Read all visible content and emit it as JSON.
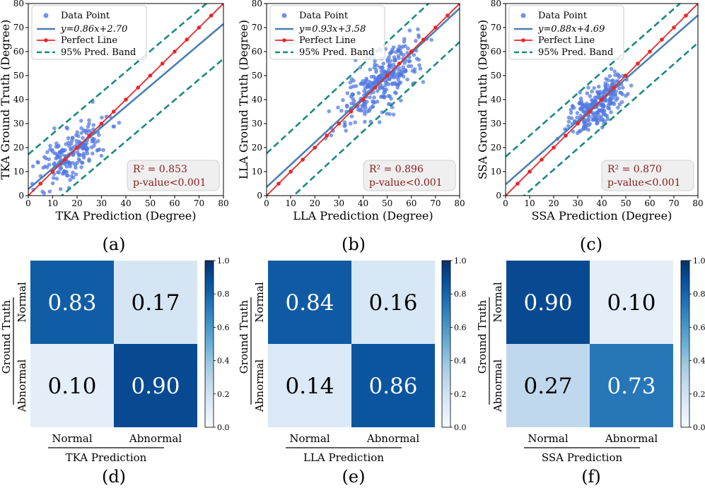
{
  "figure": {
    "panel_captions": [
      "(a)",
      "(b)",
      "(c)",
      "(d)",
      "(e)",
      "(f)"
    ]
  },
  "chart_data": [
    {
      "type": "scatter",
      "id": "a",
      "caption": "(a)",
      "xlabel": "TKA Prediction (Degree)",
      "ylabel": "TKA Ground Truth (Degree)",
      "xlim": [
        0,
        80
      ],
      "ylim": [
        0,
        80
      ],
      "xticks": [
        0,
        10,
        20,
        30,
        40,
        50,
        60,
        70,
        80
      ],
      "yticks": [
        0,
        10,
        20,
        30,
        40,
        50,
        60,
        70,
        80
      ],
      "fit": {
        "slope": 0.86,
        "intercept": 2.7,
        "label": "y=0.86x+2.70"
      },
      "band_offset": 14.5,
      "perfect_line_points": [
        0,
        5,
        10,
        15,
        20,
        25,
        30,
        35,
        40,
        45,
        50,
        55,
        60,
        65,
        70,
        75,
        80
      ],
      "scatter_cluster": {
        "center": [
          18,
          18
        ],
        "spread_along": 9,
        "spread_across": 4.5,
        "count": 200,
        "seed": 11
      },
      "legend": [
        "Data Point",
        "Perfect Line",
        "95% Pred. Band"
      ],
      "stats": {
        "r2_label": "R² = 0.853",
        "p_label": "p-value<0.001"
      }
    },
    {
      "type": "scatter",
      "id": "b",
      "caption": "(b)",
      "xlabel": "LLA Prediction (Degree)",
      "ylabel": "LLA Ground Truth (Degree)",
      "xlim": [
        0,
        80
      ],
      "ylim": [
        0,
        80
      ],
      "xticks": [
        0,
        10,
        20,
        30,
        40,
        50,
        60,
        70,
        80
      ],
      "yticks": [
        0,
        10,
        20,
        30,
        40,
        50,
        60,
        70,
        80
      ],
      "fit": {
        "slope": 0.93,
        "intercept": 3.58,
        "label": "y=0.93x+3.58"
      },
      "band_offset": 14,
      "perfect_line_points": [
        0,
        5,
        10,
        15,
        20,
        25,
        30,
        35,
        40,
        45,
        50,
        55,
        60,
        65,
        70,
        75,
        80
      ],
      "scatter_cluster": {
        "center": [
          47,
          47
        ],
        "spread_along": 11,
        "spread_across": 4.5,
        "count": 300,
        "seed": 23
      },
      "legend": [
        "Data Point",
        "Perfect Line",
        "95% Pred. Band"
      ],
      "stats": {
        "r2_label": "R² = 0.896",
        "p_label": "p-value<0.001"
      }
    },
    {
      "type": "scatter",
      "id": "c",
      "caption": "(c)",
      "xlabel": "SSA Prediction (Degree)",
      "ylabel": "SSA Ground Truth (Degree)",
      "xlim": [
        0,
        80
      ],
      "ylim": [
        0,
        80
      ],
      "xticks": [
        0,
        10,
        20,
        30,
        40,
        50,
        60,
        70,
        80
      ],
      "yticks": [
        0,
        10,
        20,
        30,
        40,
        50,
        60,
        70,
        80
      ],
      "fit": {
        "slope": 0.88,
        "intercept": 4.69,
        "label": "y=0.88x+4.69"
      },
      "band_offset": 11.5,
      "perfect_line_points": [
        0,
        5,
        10,
        15,
        20,
        25,
        30,
        35,
        40,
        45,
        50,
        55,
        60,
        65,
        70,
        75,
        80
      ],
      "scatter_cluster": {
        "center": [
          38,
          38
        ],
        "spread_along": 7,
        "spread_across": 3.5,
        "count": 250,
        "seed": 37
      },
      "legend": [
        "Data Point",
        "Perfect Line",
        "95% Pred. Band"
      ],
      "stats": {
        "r2_label": "R² = 0.870",
        "p_label": "p-value<0.001"
      }
    },
    {
      "type": "heatmap",
      "id": "d",
      "caption": "(d)",
      "row_labels": [
        "Normal",
        "Abnormal"
      ],
      "col_labels": [
        "Normal",
        "Abnormal"
      ],
      "values": [
        [
          0.83,
          0.17
        ],
        [
          0.1,
          0.9
        ]
      ],
      "cell_labels": [
        [
          "0.83",
          "0.17"
        ],
        [
          "0.10",
          "0.90"
        ]
      ],
      "ylabel": "Ground Truth",
      "xlabel": "TKA Prediction",
      "colorbar_ticks": [
        "0.0",
        "0.2",
        "0.4",
        "0.6",
        "0.8",
        "1.0"
      ],
      "vmin": 0,
      "vmax": 1
    },
    {
      "type": "heatmap",
      "id": "e",
      "caption": "(e)",
      "row_labels": [
        "Normal",
        "Abnormal"
      ],
      "col_labels": [
        "Normal",
        "Abnormal"
      ],
      "values": [
        [
          0.84,
          0.16
        ],
        [
          0.14,
          0.86
        ]
      ],
      "cell_labels": [
        [
          "0.84",
          "0.16"
        ],
        [
          "0.14",
          "0.86"
        ]
      ],
      "ylabel": "Ground Truth",
      "xlabel": "LLA Prediction",
      "colorbar_ticks": [
        "0.0",
        "0.2",
        "0.4",
        "0.6",
        "0.8",
        "1.0"
      ],
      "vmin": 0,
      "vmax": 1
    },
    {
      "type": "heatmap",
      "id": "f",
      "caption": "(f)",
      "row_labels": [
        "Normal",
        "Abnormal"
      ],
      "col_labels": [
        "Normal",
        "Abnormal"
      ],
      "values": [
        [
          0.9,
          0.1
        ],
        [
          0.27,
          0.73
        ]
      ],
      "cell_labels": [
        [
          "0.90",
          "0.10"
        ],
        [
          "0.27",
          "0.73"
        ]
      ],
      "ylabel": "Ground Truth",
      "xlabel": "SSA Prediction",
      "colorbar_ticks": [
        "0.0",
        "0.2",
        "0.4",
        "0.6",
        "0.8",
        "1.0"
      ],
      "vmin": 0,
      "vmax": 1
    }
  ],
  "colors": {
    "points": "#4f77e0",
    "fit_line": "#4a7fb5",
    "perfect_line": "#e8262a",
    "band": "#1a8a7f",
    "stats_text": "#8b1a1a",
    "stats_box": "#efefef"
  }
}
